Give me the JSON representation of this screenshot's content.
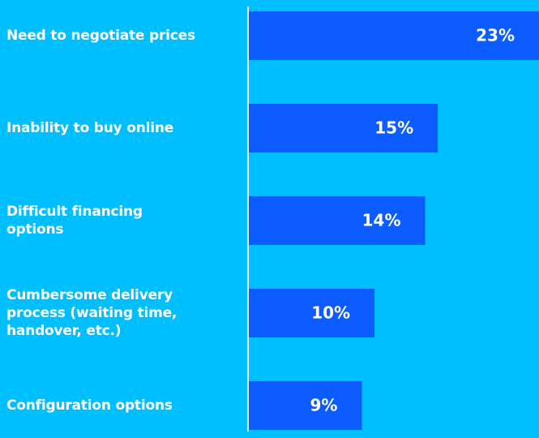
{
  "chart_data": {
    "type": "barh",
    "categories": [
      "Need to negotiate prices",
      "Inability to buy online",
      "Difficult financing\noptions",
      "Cumbersome delivery\nprocess (waiting time,\nhandover, etc.)",
      "Configuration options"
    ],
    "values": [
      23,
      15,
      14,
      10,
      9
    ],
    "value_labels": [
      "23%",
      "15%",
      "14%",
      "10%",
      "9%"
    ],
    "color": "#0d5cff",
    "background": "#00bfff",
    "xlim": [
      0,
      23
    ]
  }
}
